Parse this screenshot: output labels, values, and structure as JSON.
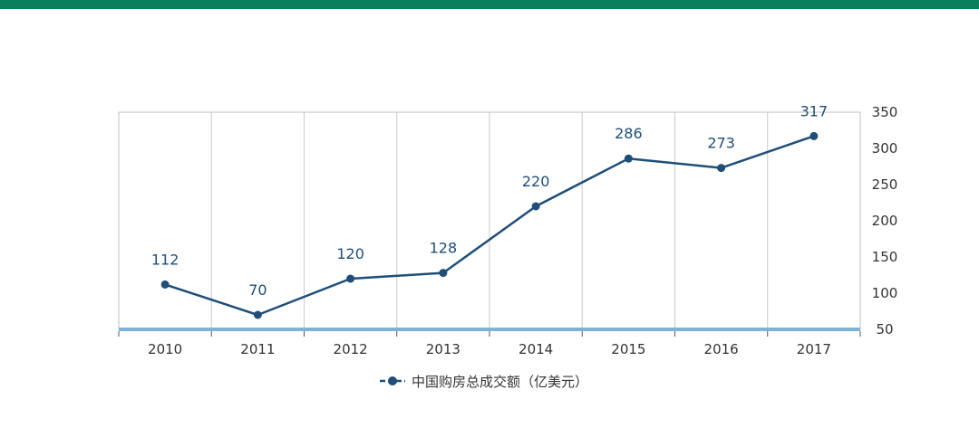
{
  "colors": {
    "top_bar": "#0a7d5c",
    "series": "#1f4e79",
    "axis_band": "#7fb2d9",
    "grid": "#c8c8c8",
    "frame": "#bfbfbf"
  },
  "chart_data": {
    "type": "line",
    "title": "",
    "xlabel": "",
    "ylabel": "",
    "x": [
      "2010",
      "2011",
      "2012",
      "2013",
      "2014",
      "2015",
      "2016",
      "2017"
    ],
    "series": [
      {
        "name": "中国购房总成交额（亿美元）",
        "values": [
          112,
          70,
          120,
          128,
          220,
          286,
          273,
          317
        ]
      }
    ],
    "ylim": [
      50,
      350
    ],
    "yticks": [
      50,
      100,
      150,
      200,
      250,
      300,
      350
    ],
    "y_axis_position": "right",
    "grid": "vertical",
    "legend_position": "bottom-center",
    "data_labels": true
  }
}
